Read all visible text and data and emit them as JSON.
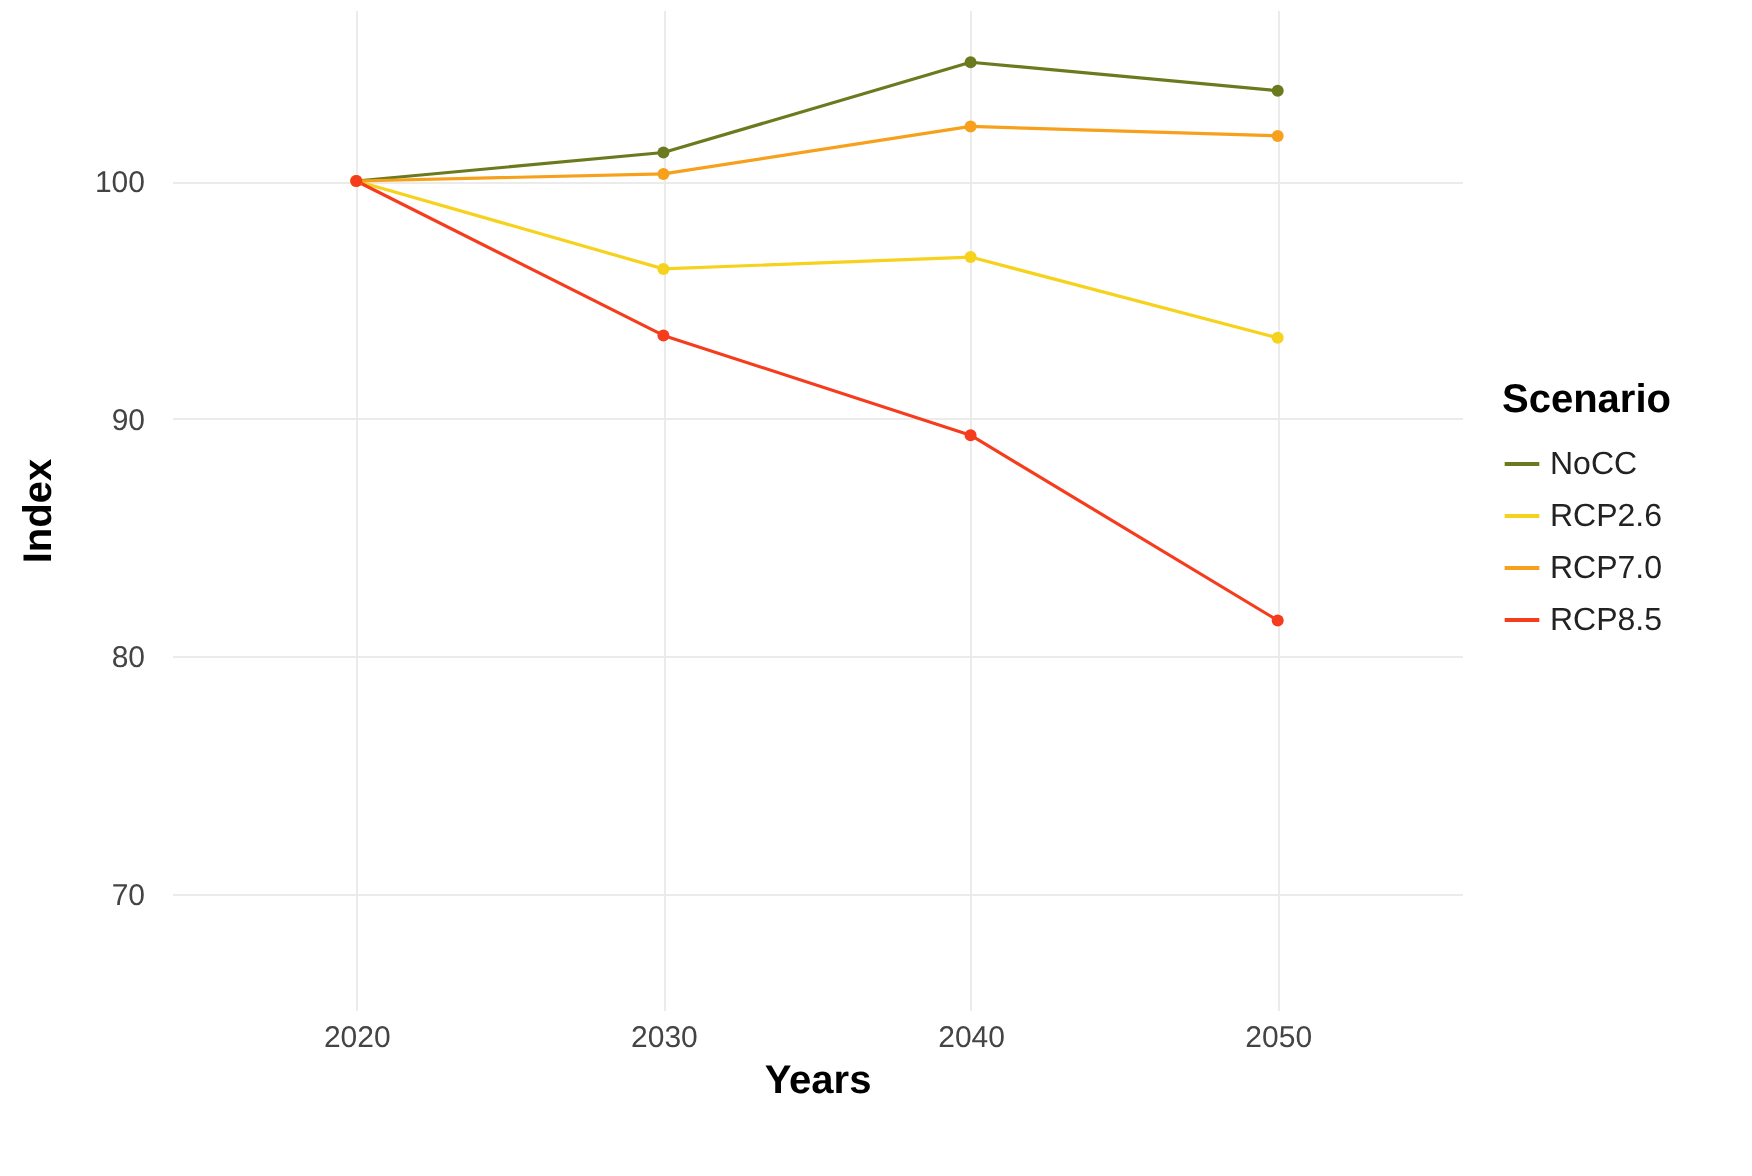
{
  "chart_data": {
    "type": "line",
    "xlabel": "Years",
    "ylabel": "Index",
    "legend_title": "Scenario",
    "x": [
      2020,
      2030,
      2040,
      2050
    ],
    "series": [
      {
        "name": "NoCC",
        "color": "#6b7a1e",
        "values": [
          100,
          101.2,
          105,
          103.8
        ]
      },
      {
        "name": "RCP2.6",
        "color": "#f7d21c",
        "values": [
          100,
          96.3,
          96.8,
          93.4
        ]
      },
      {
        "name": "RCP7.0",
        "color": "#f7a01c",
        "values": [
          100,
          100.3,
          102.3,
          101.9
        ]
      },
      {
        "name": "RCP8.5",
        "color": "#f53d1e",
        "values": [
          100,
          93.5,
          89.3,
          81.5
        ]
      }
    ],
    "xlim": [
      2014,
      2056
    ],
    "ylim": [
      65.1,
      107.2
    ],
    "xticks": [
      2020,
      2030,
      2040,
      2050
    ],
    "yticks": [
      70,
      80,
      90,
      100
    ],
    "grid": true,
    "legend": "right",
    "marker": "circle",
    "line_style": "solid"
  }
}
